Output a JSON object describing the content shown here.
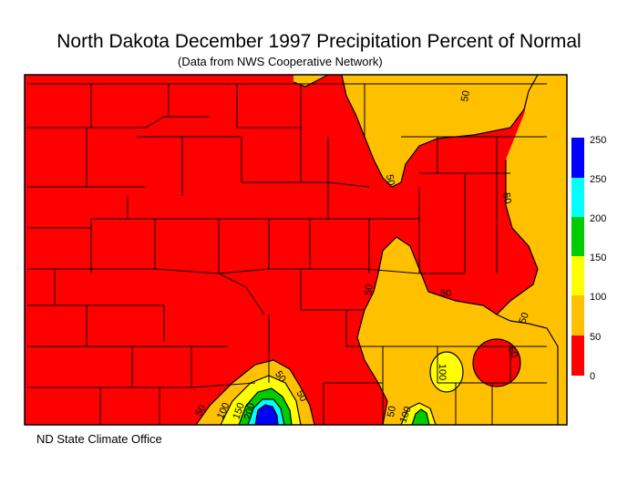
{
  "title": "North Dakota December 1997 Precipitation Percent of Normal",
  "subtitle": "(Data from NWS Cooperative Network)",
  "footer": "ND State Climate Office",
  "legend": {
    "bins": [
      {
        "label": "0",
        "color": "#ff0000"
      },
      {
        "label": "50",
        "color": "#ffc000"
      },
      {
        "label": "100",
        "color": "#ffff00"
      },
      {
        "label": "150",
        "color": "#00cc00"
      },
      {
        "label": "200",
        "color": "#00ffff"
      },
      {
        "label": "250",
        "color": "#0000ff"
      }
    ],
    "top_label": "250"
  },
  "contour_labels": [
    "50",
    "50",
    "50",
    "50",
    "50",
    "50",
    "50",
    "50",
    "100",
    "50",
    "100",
    "150",
    "200",
    "50",
    "50",
    "100"
  ],
  "colors": {
    "below_50": "#ff0000",
    "50_100": "#ffc000",
    "100_150": "#ffff00",
    "150_200": "#00cc00",
    "200_250": "#00ffff",
    "above_250": "#0000ff"
  }
}
